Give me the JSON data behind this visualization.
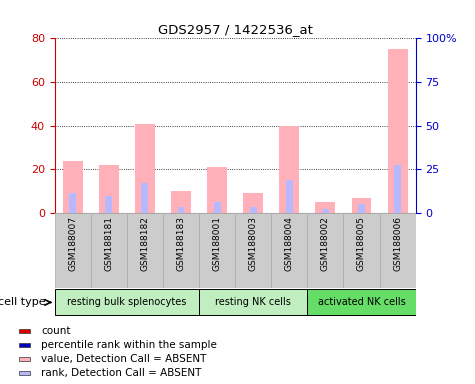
{
  "title": "GDS2957 / 1422536_at",
  "samples": [
    "GSM188007",
    "GSM188181",
    "GSM188182",
    "GSM188183",
    "GSM188001",
    "GSM188003",
    "GSM188004",
    "GSM188002",
    "GSM188005",
    "GSM188006"
  ],
  "pink_values": [
    24,
    22,
    41,
    10,
    21,
    9,
    40,
    5,
    7,
    75
  ],
  "blue_values": [
    9,
    8,
    14,
    3,
    5,
    3,
    15,
    2,
    4,
    22
  ],
  "ylim_left": [
    0,
    80
  ],
  "ylim_right": [
    0,
    100
  ],
  "yticks_left": [
    0,
    20,
    40,
    60,
    80
  ],
  "yticks_right": [
    0,
    25,
    50,
    75,
    100
  ],
  "ytick_labels_right": [
    "0",
    "25",
    "50",
    "75",
    "100%"
  ],
  "groups": [
    {
      "label": "resting bulk splenocytes",
      "start": 0,
      "end": 3,
      "color": "#c0eec0"
    },
    {
      "label": "resting NK cells",
      "start": 4,
      "end": 6,
      "color": "#c0eec0"
    },
    {
      "label": "activated NK cells",
      "start": 7,
      "end": 9,
      "color": "#66dd66"
    }
  ],
  "cell_type_label": "cell type",
  "legend_items": [
    {
      "label": "count",
      "color": "#dd0000"
    },
    {
      "label": "percentile rank within the sample",
      "color": "#0000bb"
    },
    {
      "label": "value, Detection Call = ABSENT",
      "color": "#ffb0b8"
    },
    {
      "label": "rank, Detection Call = ABSENT",
      "color": "#b8b8ff"
    }
  ],
  "pink_color": "#ffb0b8",
  "blue_color": "#b8b8ff",
  "left_tick_color": "#cc0000",
  "right_tick_color": "#0000cc",
  "bg_color": "#ffffff",
  "xtick_bg_color": "#cccccc",
  "bar_width": 0.55
}
